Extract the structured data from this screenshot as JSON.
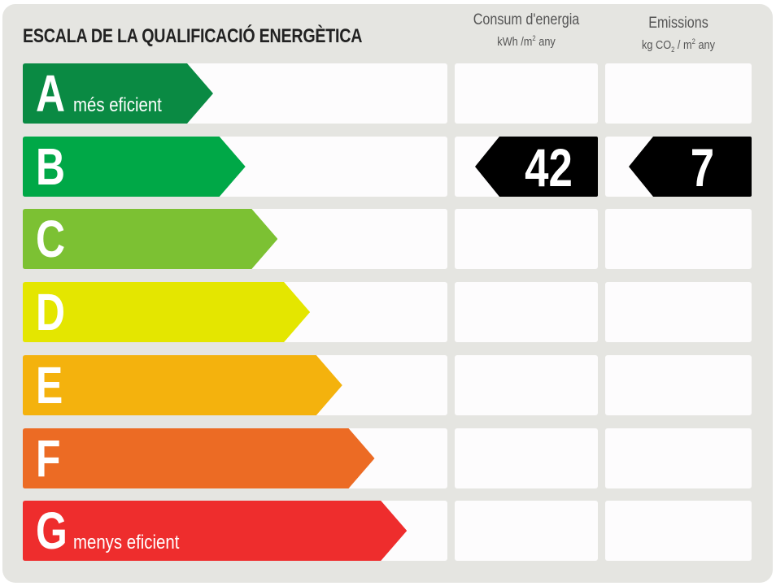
{
  "title": "ESCALA DE LA QUALIFICACIÓ ENERGÈTICA",
  "columns": {
    "energy": {
      "label": "Consum d'energia",
      "unit_pre": "kWh /m",
      "unit_sup": "2",
      "unit_post": " any"
    },
    "emissions": {
      "label": "Emissions",
      "unit_pre": "kg CO",
      "unit_sub": "2",
      "unit_mid": " / m",
      "unit_sup": "2",
      "unit_post": " any"
    }
  },
  "classes": [
    {
      "letter": "A",
      "label": "més eficient",
      "color": "#0a8a43"
    },
    {
      "letter": "B",
      "label": "",
      "color": "#00a847"
    },
    {
      "letter": "C",
      "label": "",
      "color": "#7cc133"
    },
    {
      "letter": "D",
      "label": "",
      "color": "#e4e600"
    },
    {
      "letter": "E",
      "label": "",
      "color": "#f4b20d"
    },
    {
      "letter": "F",
      "label": "",
      "color": "#ec6b24"
    },
    {
      "letter": "G",
      "label": "menys eficient",
      "color": "#ee2d2d"
    }
  ],
  "rating": {
    "energy": {
      "class": "B",
      "value": "42"
    },
    "emissions": {
      "class": "B",
      "value": "7"
    }
  },
  "indicator_color": "#000000"
}
